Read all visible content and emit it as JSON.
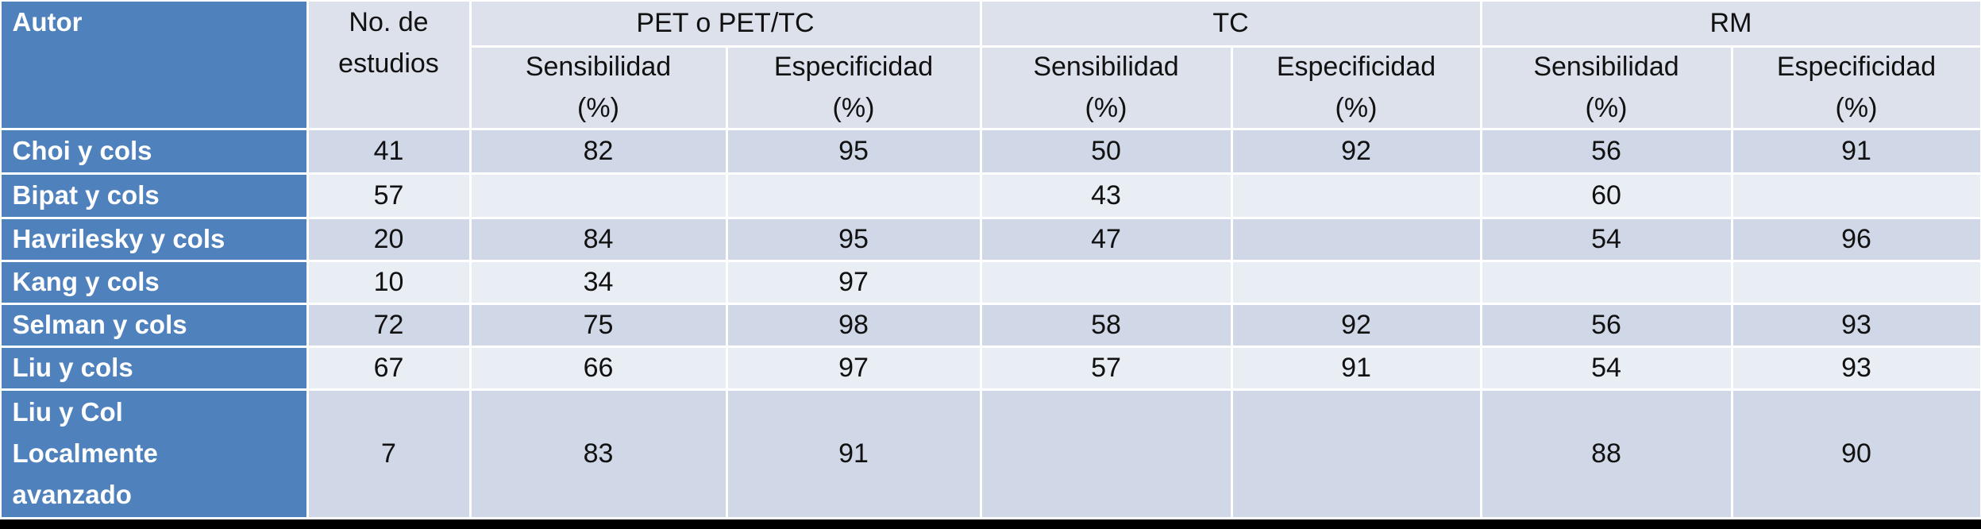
{
  "table": {
    "header": {
      "autor": "Autor",
      "no_estudios": [
        "No. de",
        "estudios"
      ],
      "groups": [
        "PET o PET/TC",
        "TC",
        "RM"
      ],
      "sub": [
        [
          "Sensibilidad",
          "(%)"
        ],
        [
          "Especificidad",
          "(%)"
        ],
        [
          "Sensibilidad",
          "(%)"
        ],
        [
          "Especificidad",
          "(%)"
        ],
        [
          "Sensibilidad",
          "(%)"
        ],
        [
          "Especificidad",
          "(%)"
        ]
      ]
    },
    "rows": [
      {
        "autor": [
          "Choi y cols"
        ],
        "values": [
          41,
          82,
          95,
          50,
          92,
          56,
          91
        ]
      },
      {
        "autor": [
          "Bipat y cols"
        ],
        "values": [
          57,
          null,
          null,
          43,
          null,
          60,
          null
        ]
      },
      {
        "autor": [
          "Havrilesky y cols"
        ],
        "values": [
          20,
          84,
          95,
          47,
          null,
          54,
          96
        ]
      },
      {
        "autor": [
          "Kang y cols"
        ],
        "values": [
          10,
          34,
          97,
          null,
          null,
          null,
          null
        ]
      },
      {
        "autor": [
          "Selman y cols"
        ],
        "values": [
          72,
          75,
          98,
          58,
          92,
          56,
          93
        ]
      },
      {
        "autor": [
          "Liu y cols"
        ],
        "values": [
          67,
          66,
          97,
          57,
          91,
          54,
          93
        ]
      },
      {
        "autor": [
          "Liu y Col",
          "Localmente",
          "avanzado"
        ],
        "values": [
          7,
          83,
          91,
          null,
          null,
          88,
          90
        ]
      }
    ]
  }
}
